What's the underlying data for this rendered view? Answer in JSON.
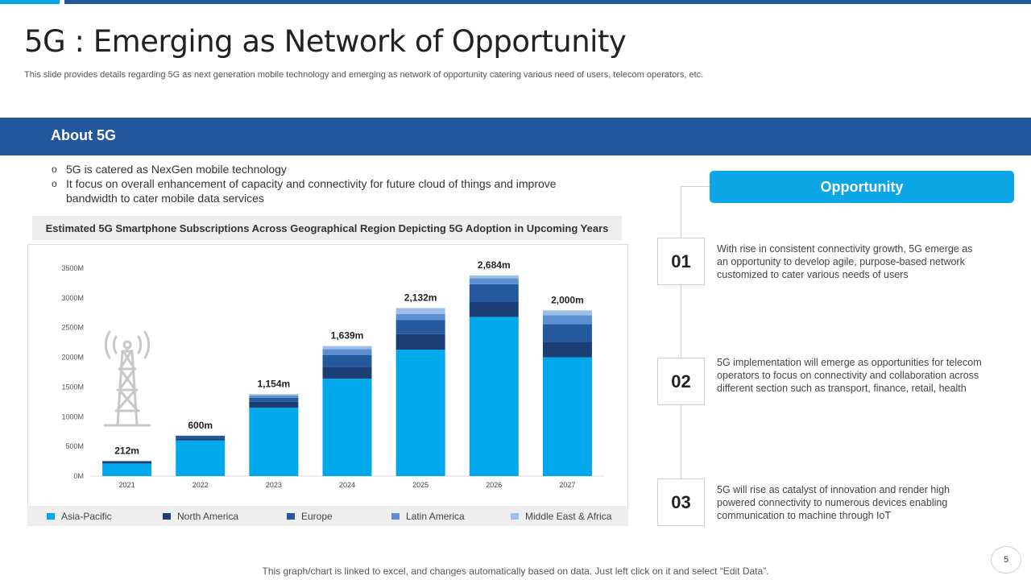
{
  "header": {
    "title": "5G : Emerging as Network of Opportunity",
    "subtitle": "This slide provides details regarding 5G as next generation mobile technology and emerging as network of opportunity catering various need of users, telecom operators, etc."
  },
  "about": {
    "title": "About 5G",
    "bullets": [
      "5G is catered as NexGen mobile technology",
      "It focus on overall enhancement of capacity and connectivity for future cloud of things and improve bandwidth to cater mobile data services"
    ]
  },
  "chart_caption": "Estimated 5G Smartphone Subscriptions Across  Geographical Region Depicting 5G Adoption in Upcoming Years",
  "chart_data": {
    "type": "bar",
    "stacked": true,
    "title": "Estimated 5G Smartphone Subscriptions Across  Geographical Region Depicting 5G Adoption in Upcoming Years",
    "categories": [
      "2021",
      "2022",
      "2023",
      "2024",
      "2025",
      "2026",
      "2027"
    ],
    "ylim": [
      0,
      3500
    ],
    "yticks": [
      0,
      500,
      1000,
      1500,
      2000,
      2500,
      3000,
      3500
    ],
    "ytick_labels": [
      "0M",
      "500M",
      "1000M",
      "1500M",
      "2000M",
      "2500M",
      "3000M",
      "3500M"
    ],
    "series": [
      {
        "name": "Asia-Pacific",
        "color": "#00a8ec",
        "values": [
          212,
          600,
          1150,
          1640,
          2130,
          2680,
          2000
        ]
      },
      {
        "name": "North America",
        "color": "#1b3f74",
        "values": [
          40,
          30,
          100,
          200,
          260,
          250,
          260
        ]
      },
      {
        "name": "Europe",
        "color": "#25599d",
        "values": [
          0,
          50,
          70,
          200,
          240,
          300,
          300
        ]
      },
      {
        "name": "Latin America",
        "color": "#5b8fd0",
        "values": [
          0,
          0,
          40,
          100,
          100,
          100,
          150
        ]
      },
      {
        "name": "Middle East & Africa",
        "color": "#9dbfe8",
        "values": [
          0,
          0,
          20,
          50,
          100,
          50,
          80
        ]
      }
    ],
    "data_labels": [
      "212m",
      "600m",
      "1,154m",
      "1,639m",
      "2,132m",
      "2,684m",
      "2,000m"
    ],
    "legend_position": "bottom"
  },
  "opportunity": {
    "title": "Opportunity",
    "items": [
      {
        "number": "01",
        "text": "With rise in consistent connectivity growth, 5G emerge as an opportunity to develop  agile, purpose-based network customized to cater various  needs of users"
      },
      {
        "number": "02",
        "text": "5G implementation  will emerge  as opportunities for telecom operators  to focus  on connectivity and collaboration  across different  section such as transport, finance,  retail, health"
      },
      {
        "number": "03",
        "text": "5G will rise as catalyst of innovation  and render  high powered  connectivity  to numerous devices enabling communication to machine through IoT"
      }
    ]
  },
  "footer_note": "This graph/chart is linked to excel, and changes automatically based on data. Just left click on it and select “Edit Data”.",
  "page_number": "5"
}
